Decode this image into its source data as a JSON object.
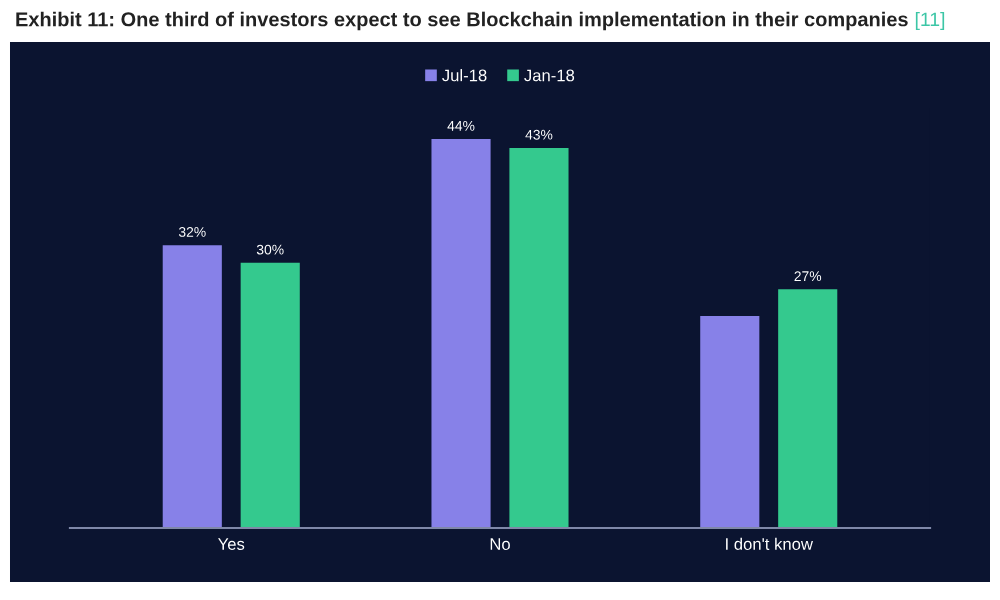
{
  "chart_data": {
    "type": "bar",
    "title": "Exhibit 11: One third of investors expect to see Blockchain implementation in their companies",
    "annotations": [
      "[11]"
    ],
    "categories": [
      "Yes",
      "No",
      "I don't know"
    ],
    "series": [
      {
        "name": "Jul-18",
        "color": "#8781e8",
        "values": [
          32,
          44,
          24
        ],
        "value_labels": [
          "32%",
          "44%",
          null
        ]
      },
      {
        "name": "Jan-18",
        "color": "#34c98e",
        "values": [
          30,
          43,
          27
        ],
        "value_labels": [
          "30%",
          "43%",
          "27%"
        ]
      }
    ],
    "legend": "top",
    "grid": false
  }
}
